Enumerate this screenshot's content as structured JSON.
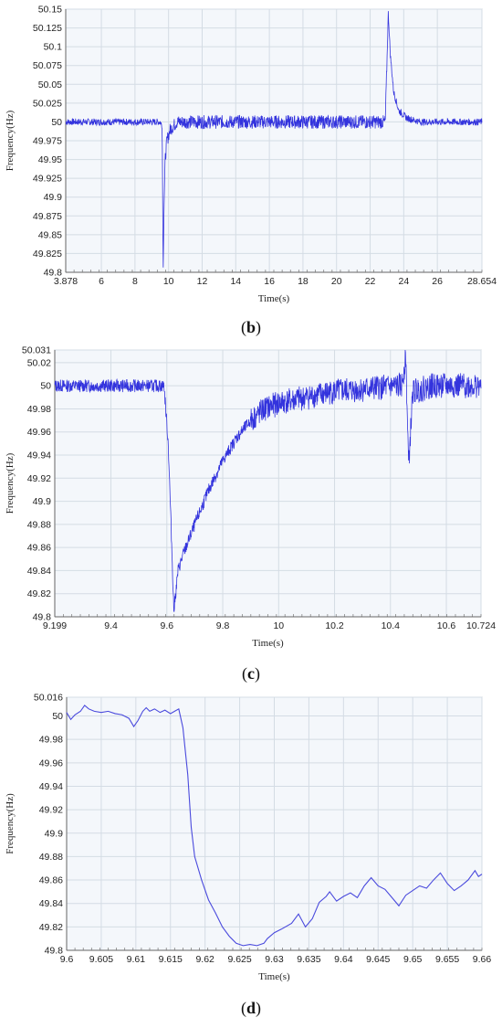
{
  "chart_data": [
    {
      "type": "line",
      "panel": "b",
      "caption_letter": "b",
      "xlabel": "Time(s)",
      "ylabel": "Frequency(Hz)",
      "xlim": [
        3.878,
        28.654
      ],
      "ylim": [
        49.8,
        50.15
      ],
      "x_ticks": [
        "3.878",
        "6",
        "8",
        "10",
        "12",
        "14",
        "16",
        "18",
        "20",
        "22",
        "24",
        "26",
        "28.654"
      ],
      "y_ticks": [
        "49.8",
        "49.825",
        "49.85",
        "49.875",
        "49.9",
        "49.925",
        "49.95",
        "49.975",
        "50",
        "50.025",
        "50.05",
        "50.075",
        "50.1",
        "50.125",
        "50.15"
      ],
      "grid": true,
      "series": [
        {
          "color": "#3333dd",
          "points": [
            [
              3.878,
              50.0
            ],
            [
              5.0,
              50.0
            ],
            [
              6.0,
              50.0
            ],
            [
              7.0,
              50.0
            ],
            [
              8.0,
              50.0
            ],
            [
              9.0,
              50.0
            ],
            [
              9.5,
              50.0
            ],
            [
              9.62,
              49.995
            ],
            [
              9.68,
              49.8
            ],
            [
              9.72,
              49.88
            ],
            [
              9.8,
              49.95
            ],
            [
              9.9,
              49.975
            ],
            [
              10.1,
              49.99
            ],
            [
              10.5,
              50.0
            ],
            [
              12.0,
              50.0
            ],
            [
              14.0,
              50.0
            ],
            [
              16.0,
              50.0
            ],
            [
              18.0,
              50.0
            ],
            [
              20.0,
              50.0
            ],
            [
              22.0,
              50.0
            ],
            [
              22.9,
              50.0
            ],
            [
              23.0,
              50.08
            ],
            [
              23.08,
              50.145
            ],
            [
              23.2,
              50.09
            ],
            [
              23.4,
              50.04
            ],
            [
              23.7,
              50.015
            ],
            [
              24.2,
              50.005
            ],
            [
              25.0,
              50.0
            ],
            [
              26.0,
              50.0
            ],
            [
              27.0,
              50.0
            ],
            [
              28.654,
              50.0
            ]
          ]
        }
      ]
    },
    {
      "type": "line",
      "panel": "c",
      "caption_letter": "c",
      "xlabel": "Time(s)",
      "ylabel": "Frequency(Hz)",
      "xlim": [
        9.199,
        10.724
      ],
      "ylim": [
        49.8,
        50.031
      ],
      "x_ticks": [
        "9.199",
        "9.4",
        "9.6",
        "9.8",
        "10",
        "10.2",
        "10.4",
        "10.6",
        "10.724"
      ],
      "y_ticks": [
        "49.8",
        "49.82",
        "49.84",
        "49.86",
        "49.88",
        "49.9",
        "49.92",
        "49.94",
        "49.96",
        "49.98",
        "50",
        "50.02",
        "50.031"
      ],
      "grid": true,
      "series": [
        {
          "color": "#3333dd",
          "points": [
            [
              9.199,
              50.0
            ],
            [
              9.3,
              50.0
            ],
            [
              9.4,
              50.0
            ],
            [
              9.5,
              50.0
            ],
            [
              9.59,
              50.0
            ],
            [
              9.605,
              49.95
            ],
            [
              9.615,
              49.88
            ],
            [
              9.625,
              49.805
            ],
            [
              9.64,
              49.84
            ],
            [
              9.66,
              49.855
            ],
            [
              9.7,
              49.88
            ],
            [
              9.75,
              49.91
            ],
            [
              9.8,
              49.935
            ],
            [
              9.85,
              49.955
            ],
            [
              9.9,
              49.97
            ],
            [
              9.95,
              49.98
            ],
            [
              10.0,
              49.985
            ],
            [
              10.1,
              49.99
            ],
            [
              10.2,
              49.995
            ],
            [
              10.3,
              49.997
            ],
            [
              10.44,
              50.0
            ],
            [
              10.455,
              50.025
            ],
            [
              10.465,
              49.93
            ],
            [
              10.48,
              49.995
            ],
            [
              10.55,
              50.0
            ],
            [
              10.65,
              50.0
            ],
            [
              10.724,
              50.0
            ]
          ]
        }
      ]
    },
    {
      "type": "line",
      "panel": "d",
      "caption_letter": "d",
      "xlabel": "Time(s)",
      "ylabel": "Frequency(Hz)",
      "xlim": [
        9.6,
        9.66
      ],
      "ylim": [
        49.8,
        50.016
      ],
      "x_ticks": [
        "9.6",
        "9.605",
        "9.61",
        "9.615",
        "9.62",
        "9.625",
        "9.63",
        "9.635",
        "9.64",
        "9.645",
        "9.65",
        "9.655",
        "9.66"
      ],
      "y_ticks": [
        "49.8",
        "49.82",
        "49.84",
        "49.86",
        "49.88",
        "49.9",
        "49.92",
        "49.94",
        "49.96",
        "49.98",
        "50",
        "50.016"
      ],
      "grid": true,
      "series": [
        {
          "color": "#4a4add",
          "points": [
            [
              9.6,
              50.003
            ],
            [
              9.6006,
              49.997
            ],
            [
              9.6012,
              50.001
            ],
            [
              9.602,
              50.004
            ],
            [
              9.6026,
              50.009
            ],
            [
              9.6032,
              50.006
            ],
            [
              9.604,
              50.004
            ],
            [
              9.605,
              50.003
            ],
            [
              9.606,
              50.004
            ],
            [
              9.607,
              50.002
            ],
            [
              9.608,
              50.001
            ],
            [
              9.609,
              49.998
            ],
            [
              9.6097,
              49.991
            ],
            [
              9.6103,
              49.996
            ],
            [
              9.611,
              50.004
            ],
            [
              9.6115,
              50.007
            ],
            [
              9.612,
              50.004
            ],
            [
              9.6127,
              50.006
            ],
            [
              9.6135,
              50.003
            ],
            [
              9.6142,
              50.005
            ],
            [
              9.615,
              50.002
            ],
            [
              9.6156,
              50.004
            ],
            [
              9.6162,
              50.006
            ],
            [
              9.6168,
              49.99
            ],
            [
              9.6175,
              49.95
            ],
            [
              9.618,
              49.905
            ],
            [
              9.6185,
              49.88
            ],
            [
              9.6195,
              49.86
            ],
            [
              9.6205,
              49.843
            ],
            [
              9.6215,
              49.832
            ],
            [
              9.6225,
              49.82
            ],
            [
              9.6235,
              49.812
            ],
            [
              9.6245,
              49.806
            ],
            [
              9.6255,
              49.804
            ],
            [
              9.6265,
              49.805
            ],
            [
              9.6275,
              49.804
            ],
            [
              9.6285,
              49.806
            ],
            [
              9.629,
              49.81
            ],
            [
              9.63,
              49.815
            ],
            [
              9.631,
              49.818
            ],
            [
              9.6325,
              49.823
            ],
            [
              9.6335,
              49.831
            ],
            [
              9.6345,
              49.82
            ],
            [
              9.6355,
              49.827
            ],
            [
              9.6365,
              49.841
            ],
            [
              9.6375,
              49.846
            ],
            [
              9.638,
              49.85
            ],
            [
              9.639,
              49.842
            ],
            [
              9.64,
              49.846
            ],
            [
              9.641,
              49.849
            ],
            [
              9.642,
              49.845
            ],
            [
              9.643,
              49.855
            ],
            [
              9.644,
              49.862
            ],
            [
              9.645,
              49.855
            ],
            [
              9.646,
              49.852
            ],
            [
              9.647,
              49.845
            ],
            [
              9.648,
              49.838
            ],
            [
              9.649,
              49.847
            ],
            [
              9.65,
              49.851
            ],
            [
              9.651,
              49.855
            ],
            [
              9.652,
              49.853
            ],
            [
              9.653,
              49.86
            ],
            [
              9.654,
              49.866
            ],
            [
              9.655,
              49.857
            ],
            [
              9.656,
              49.851
            ],
            [
              9.657,
              49.855
            ],
            [
              9.658,
              49.86
            ],
            [
              9.659,
              49.868
            ],
            [
              9.6595,
              49.863
            ],
            [
              9.66,
              49.865
            ]
          ]
        }
      ]
    }
  ]
}
